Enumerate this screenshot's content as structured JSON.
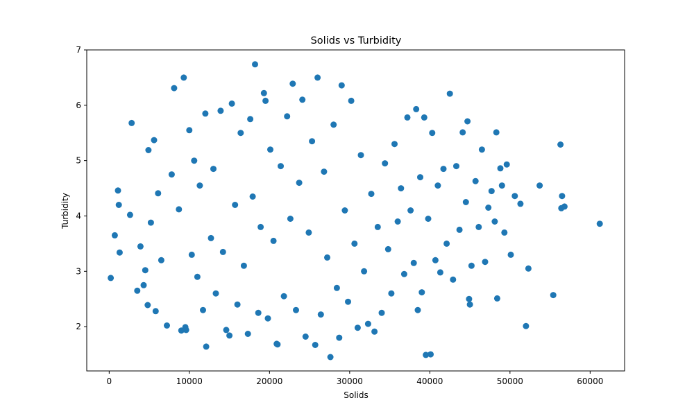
{
  "chart_data": {
    "type": "scatter",
    "title": "Solids vs Turbidity",
    "xlabel": "Solids",
    "ylabel": "Turbidity",
    "xlim": [
      -2800,
      64300
    ],
    "ylim": [
      1.2,
      7.0
    ],
    "xticks": [
      0,
      10000,
      20000,
      30000,
      40000,
      50000,
      60000
    ],
    "yticks": [
      2,
      3,
      4,
      5,
      6,
      7
    ],
    "grid": false,
    "color": "#1f77b4",
    "series": [
      {
        "points": [
          [
            200,
            2.88
          ],
          [
            700,
            3.65
          ],
          [
            1100,
            4.46
          ],
          [
            1200,
            4.2
          ],
          [
            1300,
            3.34
          ],
          [
            2600,
            4.02
          ],
          [
            2800,
            5.68
          ],
          [
            3500,
            2.65
          ],
          [
            3900,
            3.45
          ],
          [
            4300,
            2.75
          ],
          [
            4500,
            3.02
          ],
          [
            4800,
            2.39
          ],
          [
            4900,
            5.19
          ],
          [
            5200,
            3.88
          ],
          [
            5600,
            5.37
          ],
          [
            5800,
            2.28
          ],
          [
            6100,
            4.41
          ],
          [
            6500,
            3.2
          ],
          [
            7200,
            2.02
          ],
          [
            7800,
            4.75
          ],
          [
            8100,
            6.31
          ],
          [
            8700,
            4.12
          ],
          [
            9000,
            1.93
          ],
          [
            9300,
            6.5
          ],
          [
            9500,
            1.99
          ],
          [
            9600,
            1.94
          ],
          [
            10000,
            5.55
          ],
          [
            10300,
            3.3
          ],
          [
            10600,
            5.0
          ],
          [
            11000,
            2.9
          ],
          [
            11300,
            4.55
          ],
          [
            11700,
            2.3
          ],
          [
            12000,
            5.85
          ],
          [
            12100,
            1.64
          ],
          [
            12700,
            3.6
          ],
          [
            13000,
            4.85
          ],
          [
            13300,
            2.6
          ],
          [
            13900,
            5.9
          ],
          [
            14200,
            3.35
          ],
          [
            14600,
            1.94
          ],
          [
            15000,
            1.84
          ],
          [
            15300,
            6.03
          ],
          [
            15700,
            4.2
          ],
          [
            16000,
            2.4
          ],
          [
            16400,
            5.5
          ],
          [
            16800,
            3.1
          ],
          [
            17300,
            1.87
          ],
          [
            17600,
            5.75
          ],
          [
            17900,
            4.35
          ],
          [
            18200,
            6.74
          ],
          [
            18600,
            2.25
          ],
          [
            18900,
            3.8
          ],
          [
            19300,
            6.22
          ],
          [
            19500,
            6.08
          ],
          [
            19800,
            2.15
          ],
          [
            20100,
            5.2
          ],
          [
            20500,
            3.55
          ],
          [
            20900,
            1.69
          ],
          [
            21000,
            1.68
          ],
          [
            21400,
            4.9
          ],
          [
            21800,
            2.55
          ],
          [
            22200,
            5.8
          ],
          [
            22600,
            3.95
          ],
          [
            22900,
            6.39
          ],
          [
            23300,
            2.3
          ],
          [
            23700,
            4.6
          ],
          [
            24100,
            6.1
          ],
          [
            24500,
            1.82
          ],
          [
            24900,
            3.7
          ],
          [
            25300,
            5.35
          ],
          [
            25700,
            1.67
          ],
          [
            26000,
            6.5
          ],
          [
            26400,
            2.22
          ],
          [
            26800,
            4.8
          ],
          [
            27200,
            3.25
          ],
          [
            27600,
            1.45
          ],
          [
            28000,
            5.65
          ],
          [
            28400,
            2.7
          ],
          [
            28700,
            1.8
          ],
          [
            29000,
            6.36
          ],
          [
            29400,
            4.1
          ],
          [
            29800,
            2.45
          ],
          [
            30200,
            6.08
          ],
          [
            30600,
            3.5
          ],
          [
            31000,
            1.98
          ],
          [
            31400,
            5.1
          ],
          [
            31800,
            3.0
          ],
          [
            32300,
            2.05
          ],
          [
            32700,
            4.4
          ],
          [
            33100,
            1.91
          ],
          [
            33500,
            3.8
          ],
          [
            34000,
            2.25
          ],
          [
            34400,
            4.95
          ],
          [
            34800,
            3.4
          ],
          [
            35200,
            2.6
          ],
          [
            35600,
            5.3
          ],
          [
            36000,
            3.9
          ],
          [
            36400,
            4.5
          ],
          [
            36800,
            2.95
          ],
          [
            37200,
            5.78
          ],
          [
            37600,
            4.1
          ],
          [
            38000,
            3.15
          ],
          [
            38300,
            5.93
          ],
          [
            38500,
            2.3
          ],
          [
            38800,
            4.7
          ],
          [
            39000,
            2.62
          ],
          [
            39300,
            5.78
          ],
          [
            39500,
            1.49
          ],
          [
            39800,
            3.95
          ],
          [
            40100,
            1.5
          ],
          [
            40300,
            5.5
          ],
          [
            40700,
            3.2
          ],
          [
            41000,
            4.55
          ],
          [
            41300,
            2.98
          ],
          [
            41700,
            4.85
          ],
          [
            42100,
            3.5
          ],
          [
            42500,
            6.21
          ],
          [
            42900,
            2.85
          ],
          [
            43300,
            4.9
          ],
          [
            43700,
            3.75
          ],
          [
            44100,
            5.51
          ],
          [
            44500,
            4.25
          ],
          [
            44700,
            5.71
          ],
          [
            44900,
            2.5
          ],
          [
            45000,
            2.4
          ],
          [
            45200,
            3.1
          ],
          [
            45700,
            4.63
          ],
          [
            46100,
            3.8
          ],
          [
            46500,
            5.2
          ],
          [
            46900,
            3.17
          ],
          [
            47300,
            4.15
          ],
          [
            47700,
            4.45
          ],
          [
            48100,
            3.9
          ],
          [
            48300,
            5.51
          ],
          [
            48400,
            2.51
          ],
          [
            48800,
            4.86
          ],
          [
            49000,
            4.55
          ],
          [
            49300,
            3.7
          ],
          [
            49600,
            4.93
          ],
          [
            50100,
            3.3
          ],
          [
            50600,
            4.36
          ],
          [
            51300,
            4.22
          ],
          [
            52000,
            2.01
          ],
          [
            52300,
            3.05
          ],
          [
            53700,
            4.55
          ],
          [
            55400,
            2.57
          ],
          [
            56300,
            5.29
          ],
          [
            56400,
            4.14
          ],
          [
            56500,
            4.36
          ],
          [
            56800,
            4.17
          ],
          [
            61200,
            3.86
          ]
        ]
      }
    ]
  }
}
